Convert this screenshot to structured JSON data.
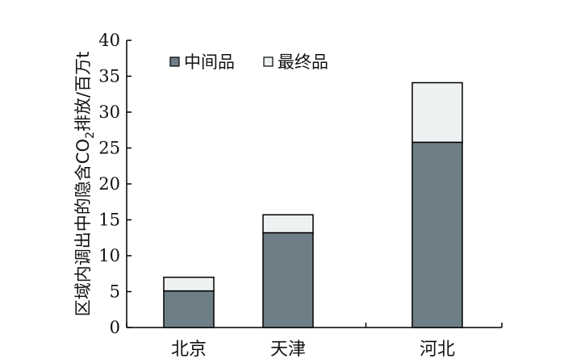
{
  "chart_data": {
    "type": "bar",
    "stacked": true,
    "categories": [
      "北京",
      "天津",
      "河北"
    ],
    "series": [
      {
        "name": "中间品",
        "values": [
          5.1,
          13.2,
          25.8
        ],
        "color": "#6e7e86"
      },
      {
        "name": "最终品",
        "values": [
          1.9,
          2.5,
          8.3
        ],
        "color": "#eef1f2"
      }
    ],
    "ylabel_parts": [
      "区域内调出中的隐含CO",
      "2",
      "排放/百万t"
    ],
    "xlabel": "",
    "title": "",
    "ylim": [
      0,
      40
    ],
    "yticks": [
      0,
      5,
      10,
      15,
      20,
      25,
      30,
      35,
      40
    ],
    "grid": false,
    "legend_position": "top-left"
  }
}
